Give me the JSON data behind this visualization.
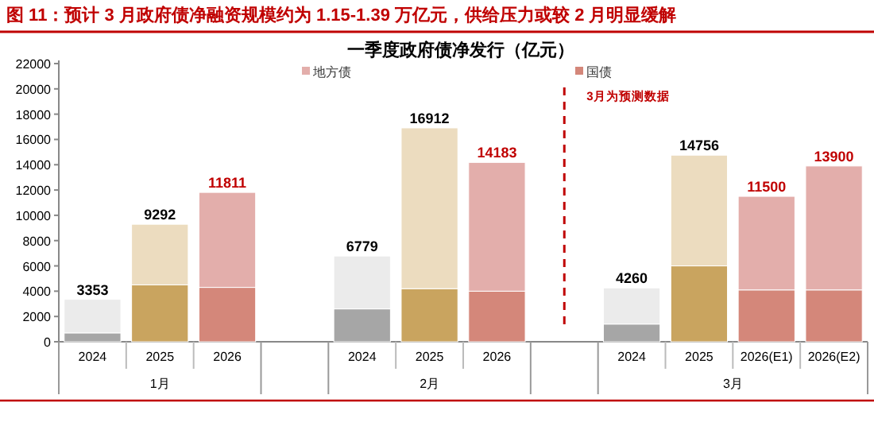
{
  "chart_data": {
    "type": "bar",
    "title": "图 11：预计 3 月政府债净融资规模约为 1.15-1.39 万亿元，供给压力或较 2 月明显缓解",
    "subtitle": "一季度政府债净发行（亿元）",
    "categories": [
      "2024",
      "2025",
      "2026",
      null,
      "2024",
      "2025",
      "2026",
      null,
      "2024",
      "2025",
      "2026(E1)",
      "2026(E2)"
    ],
    "stacked": true,
    "series": [
      {
        "name": "国债",
        "color": "#d4877a",
        "colors": [
          "#a6a6a6",
          "#c9a45f",
          "#d4877a",
          null,
          "#a6a6a6",
          "#c9a45f",
          "#d4877a",
          null,
          "#a6a6a6",
          "#c9a45f",
          "#d4877a",
          "#d4877a"
        ],
        "values": [
          700,
          4500,
          4300,
          null,
          2600,
          4200,
          4000,
          null,
          1400,
          6000,
          4100,
          4100
        ]
      },
      {
        "name": "地方债",
        "color": "#e3aeab",
        "colors": [
          "#ebebeb",
          "#ecdcbf",
          "#e3aeab",
          null,
          "#ebebeb",
          "#ecdcbf",
          "#e3aeab",
          null,
          "#ebebeb",
          "#ecdcbf",
          "#e3aeab",
          "#e3aeab"
        ],
        "values": [
          2653,
          4792,
          7511,
          null,
          4179,
          12712,
          10183,
          null,
          2860,
          8756,
          7400,
          9800
        ]
      }
    ],
    "totals": [
      "3353",
      "9292",
      "11811",
      null,
      "6779",
      "16912",
      "14183",
      null,
      "4260",
      "14756",
      "11500",
      "13900"
    ],
    "ylim": [
      0,
      22000
    ],
    "yticks": [
      0,
      2000,
      4000,
      6000,
      8000,
      10000,
      12000,
      14000,
      16000,
      18000,
      20000,
      22000
    ],
    "annotations": [
      "1月",
      "2月",
      "3月",
      "3月为预测数据"
    ],
    "legend": "top",
    "grid": false
  }
}
